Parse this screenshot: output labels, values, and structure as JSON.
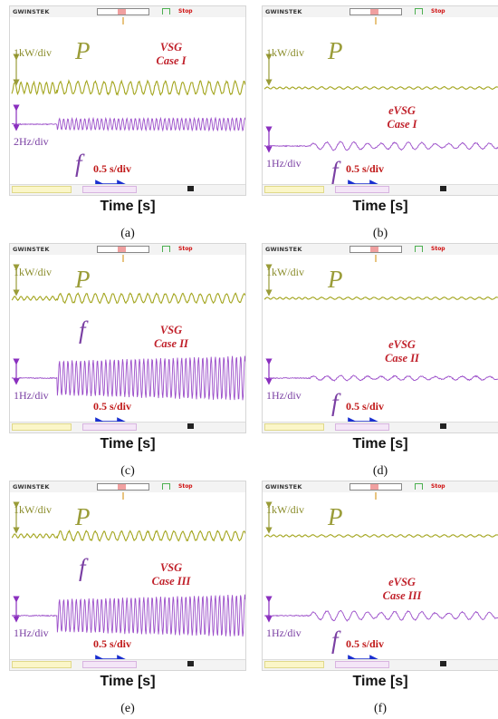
{
  "scope_header": {
    "brand": "GWINSTEK",
    "stop": "Stop"
  },
  "panels": [
    {
      "id": "a",
      "label": "(a)",
      "method": "VSG",
      "case": "Case I",
      "p_scale": "1kW/div",
      "f_scale": "2Hz/div",
      "time_scale": "0.5 s/div",
      "xlabel": "Time [s]",
      "p_symbol": "P",
      "f_symbol": "f",
      "trace_params": {
        "p_pre_amp": 6,
        "p_post_amp": 7,
        "f_pre_amp": 1,
        "f_post_amp": 6,
        "f_style": "dense",
        "f_growth": 0.15
      }
    },
    {
      "id": "b",
      "label": "(b)",
      "method": "eVSG",
      "case": "Case I",
      "p_scale": "1kW/div",
      "f_scale": "1Hz/div",
      "time_scale": "0.5 s/div",
      "xlabel": "Time [s]",
      "p_symbol": "P",
      "f_symbol": "f",
      "trace_params": {
        "p_pre_amp": 1,
        "p_post_amp": 1.2,
        "f_pre_amp": 1,
        "f_post_amp": 5,
        "f_style": "damped",
        "f_growth": 0
      }
    },
    {
      "id": "c",
      "label": "(c)",
      "method": "VSG",
      "case": "Case II",
      "p_scale": "1kW/div",
      "f_scale": "1Hz/div",
      "time_scale": "0.5 s/div",
      "xlabel": "Time [s]",
      "p_symbol": "P",
      "f_symbol": "f",
      "trace_params": {
        "p_pre_amp": 2,
        "p_post_amp": 5,
        "f_pre_amp": 1,
        "f_post_amp": 19,
        "f_style": "dense",
        "f_growth": 0.3
      }
    },
    {
      "id": "d",
      "label": "(d)",
      "method": "eVSG",
      "case": "Case II",
      "p_scale": "1kW/div",
      "f_scale": "1Hz/div",
      "time_scale": "0.5 s/div",
      "xlabel": "Time [s]",
      "p_symbol": "P",
      "f_symbol": "f",
      "trace_params": {
        "p_pre_amp": 1,
        "p_post_amp": 1.2,
        "f_pre_amp": 1,
        "f_post_amp": 3,
        "f_style": "damped",
        "f_growth": 0
      }
    },
    {
      "id": "e",
      "label": "(e)",
      "method": "VSG",
      "case": "Case III",
      "p_scale": "1kW/div",
      "f_scale": "1Hz/div",
      "time_scale": "0.5 s/div",
      "xlabel": "Time [s]",
      "p_symbol": "P",
      "f_symbol": "f",
      "trace_params": {
        "p_pre_amp": 2,
        "p_post_amp": 5,
        "f_pre_amp": 1,
        "f_post_amp": 18,
        "f_style": "dense",
        "f_growth": 0.3
      }
    },
    {
      "id": "f",
      "label": "(f)",
      "method": "eVSG",
      "case": "Case III",
      "p_scale": "1kW/div",
      "f_scale": "1Hz/div",
      "time_scale": "0.5 s/div",
      "xlabel": "Time [s]",
      "p_symbol": "P",
      "f_symbol": "f",
      "trace_params": {
        "p_pre_amp": 1,
        "p_post_amp": 1.2,
        "f_pre_amp": 1,
        "f_post_amp": 6,
        "f_style": "damped",
        "f_growth": 0
      }
    }
  ],
  "chart_data": {
    "type": "line",
    "title": "",
    "xlabel": "Time [s]",
    "ylabel": "",
    "series": [
      {
        "name": "P",
        "color": "#a3a51e"
      },
      {
        "name": "f",
        "color": "#8a2fbf"
      }
    ],
    "colors": {
      "power_trace": "#a3a51e",
      "freq_trace": "#8a2fbf",
      "case_text": "#c0202a",
      "scale_arrow": "#1a2fd0"
    }
  }
}
